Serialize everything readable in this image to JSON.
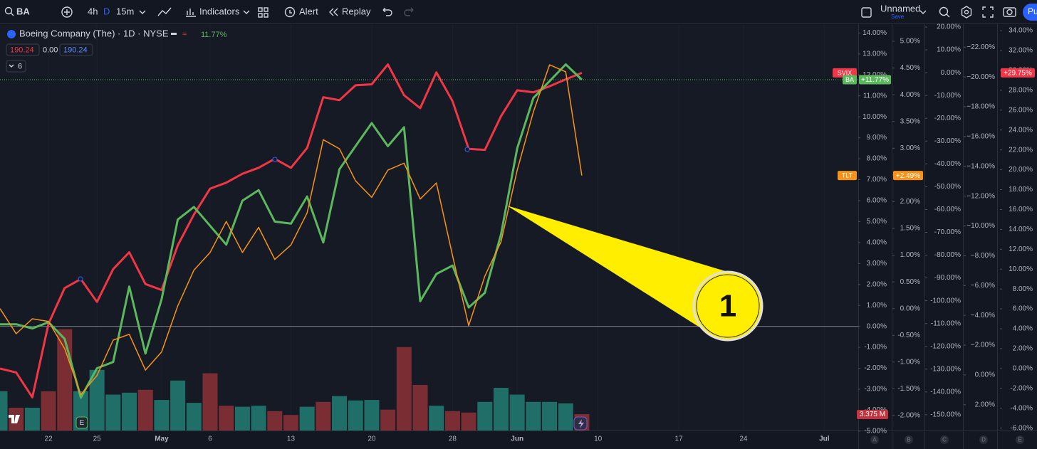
{
  "toolbar": {
    "symbol": "BA",
    "intervals": [
      "4h",
      "D",
      "15m"
    ],
    "indicators": "Indicators",
    "alert": "Alert",
    "replay": "Replay",
    "layout_name": "Unnamed",
    "save": "Save",
    "button": "Pu"
  },
  "legend": {
    "title": "Boeing Company (The) · 1D · NYSE",
    "change": "11.77%",
    "open": "190.24",
    "diff": "0.00",
    "close": "190.24",
    "count": "6"
  },
  "annotation": "1",
  "chart_data": {
    "type": "line",
    "x": [
      0,
      1,
      2,
      3,
      4,
      5,
      6,
      7,
      8,
      9,
      10,
      11,
      12,
      13,
      14,
      15,
      16,
      17,
      18,
      19,
      20,
      21,
      22,
      23,
      24,
      25,
      26,
      27,
      28,
      29,
      30,
      31,
      32,
      33,
      34,
      35,
      36
    ],
    "xlim": [
      0,
      53.1
    ],
    "xticks": [
      {
        "value": 3,
        "label": "22"
      },
      {
        "value": 6,
        "label": "25"
      },
      {
        "value": 10,
        "label": "May"
      },
      {
        "value": 13,
        "label": "6"
      },
      {
        "value": 18,
        "label": "13"
      },
      {
        "value": 23,
        "label": "20"
      },
      {
        "value": 28,
        "label": "28"
      },
      {
        "value": 32,
        "label": "Jun"
      },
      {
        "value": 37,
        "label": "10"
      },
      {
        "value": 42,
        "label": "17"
      },
      {
        "value": 46,
        "label": "24"
      },
      {
        "value": 51,
        "label": "Jul"
      }
    ],
    "axes": [
      {
        "letter": "A",
        "lim": [
          -4.97,
          14.42
        ],
        "inverted": false,
        "ticks": [
          {
            "value": 14,
            "label": "14.00%"
          },
          {
            "value": 13,
            "label": "13.00%"
          },
          {
            "value": 12,
            "label": "12.00%"
          },
          {
            "value": 11,
            "label": "11.00%"
          },
          {
            "value": 10,
            "label": "10.00%"
          },
          {
            "value": 9,
            "label": "9.00%"
          },
          {
            "value": 8,
            "label": "8.00%"
          },
          {
            "value": 7,
            "label": "7.00%"
          },
          {
            "value": 6,
            "label": "6.00%"
          },
          {
            "value": 5,
            "label": "5.00%"
          },
          {
            "value": 4,
            "label": "4.00%"
          },
          {
            "value": 3,
            "label": "3.00%"
          },
          {
            "value": 2,
            "label": "2.00%"
          },
          {
            "value": 1,
            "label": "1.00%"
          },
          {
            "value": 0,
            "label": "0.00%"
          },
          {
            "value": -1,
            "label": "-1.00%"
          },
          {
            "value": -2,
            "label": "-2.00%"
          },
          {
            "value": -3,
            "label": "-3.00%"
          },
          {
            "value": -4,
            "label": "-4.00%"
          },
          {
            "value": -5,
            "label": "-5.00%"
          }
        ]
      },
      {
        "letter": "B",
        "lim": [
          -2.28,
          5.32
        ],
        "inverted": false,
        "ticks": [
          {
            "value": 5,
            "label": "5.00%"
          },
          {
            "value": 4.5,
            "label": "4.50%"
          },
          {
            "value": 4,
            "label": "4.00%"
          },
          {
            "value": 3.5,
            "label": "3.50%"
          },
          {
            "value": 3,
            "label": "3.00%"
          },
          {
            "value": 2.5,
            "label": "2.50%"
          },
          {
            "value": 2,
            "label": "2.00%"
          },
          {
            "value": 1.5,
            "label": "1.50%"
          },
          {
            "value": 1,
            "label": "1.00%"
          },
          {
            "value": 0.5,
            "label": "0.50%"
          },
          {
            "value": 0,
            "label": "0.00%"
          },
          {
            "value": -0.5,
            "label": "-0.50%"
          },
          {
            "value": -1,
            "label": "-1.00%"
          },
          {
            "value": -1.5,
            "label": "-1.50%"
          },
          {
            "value": -2,
            "label": "-2.00%"
          }
        ]
      },
      {
        "letter": "C",
        "lim": [
          -156.9,
          21.25
        ],
        "inverted": false,
        "ticks": [
          {
            "value": 20,
            "label": "20.00%"
          },
          {
            "value": 10,
            "label": "10.00%"
          },
          {
            "value": 0,
            "label": "0.00%"
          },
          {
            "value": -10,
            "label": "-10.00%"
          },
          {
            "value": -20,
            "label": "-20.00%"
          },
          {
            "value": -30,
            "label": "-30.00%"
          },
          {
            "value": -40,
            "label": "-40.00%"
          },
          {
            "value": -50,
            "label": "-50.00%"
          },
          {
            "value": -60,
            "label": "-60.00%"
          },
          {
            "value": -70,
            "label": "-70.00%"
          },
          {
            "value": -80,
            "label": "-80.00%"
          },
          {
            "value": -90,
            "label": "-90.00%"
          },
          {
            "value": -100,
            "label": "-100.00%"
          },
          {
            "value": -110,
            "label": "-110.00%"
          },
          {
            "value": -120,
            "label": "-120.00%"
          },
          {
            "value": -130,
            "label": "-130.00%"
          },
          {
            "value": -140,
            "label": "-140.00%"
          },
          {
            "value": -150,
            "label": "-150.00%"
          }
        ]
      },
      {
        "letter": "D",
        "lim": [
          -23.54,
          3.73
        ],
        "inverted": true,
        "ticks": [
          {
            "value": -22,
            "label": "−22.00%"
          },
          {
            "value": -20,
            "label": "−20.00%"
          },
          {
            "value": -18,
            "label": "−18.00%"
          },
          {
            "value": -16,
            "label": "−16.00%"
          },
          {
            "value": -14,
            "label": "−14.00%"
          },
          {
            "value": -12,
            "label": "−12.00%"
          },
          {
            "value": -10,
            "label": "−10.00%"
          },
          {
            "value": -8,
            "label": "−8.00%"
          },
          {
            "value": -6,
            "label": "−6.00%"
          },
          {
            "value": -4,
            "label": "−4.00%"
          },
          {
            "value": -2,
            "label": "−2.00%"
          },
          {
            "value": 0,
            "label": "0.00%"
          },
          {
            "value": 2,
            "label": "2.00%"
          }
        ]
      },
      {
        "letter": "E",
        "lim": [
          -6.24,
          34.65
        ],
        "inverted": false,
        "ticks": [
          {
            "value": 34,
            "label": "34.00%"
          },
          {
            "value": 32,
            "label": "32.00%"
          },
          {
            "value": 30,
            "label": "30.00%"
          },
          {
            "value": 28,
            "label": "28.00%"
          },
          {
            "value": 26,
            "label": "26.00%"
          },
          {
            "value": 24,
            "label": "24.00%"
          },
          {
            "value": 22,
            "label": "22.00%"
          },
          {
            "value": 20,
            "label": "20.00%"
          },
          {
            "value": 18,
            "label": "18.00%"
          },
          {
            "value": 16,
            "label": "16.00%"
          },
          {
            "value": 14,
            "label": "14.00%"
          },
          {
            "value": 12,
            "label": "12.00%"
          },
          {
            "value": 10,
            "label": "10.00%"
          },
          {
            "value": 8,
            "label": "8.00%"
          },
          {
            "value": 6,
            "label": "6.00%"
          },
          {
            "value": 4,
            "label": "4.00%"
          },
          {
            "value": 2,
            "label": "2.00%"
          },
          {
            "value": 0,
            "label": "0.00%"
          },
          {
            "value": -2,
            "label": "-2.00%"
          },
          {
            "value": -4,
            "label": "-4.00%"
          },
          {
            "value": -6,
            "label": "-6.00%"
          }
        ]
      }
    ],
    "series": [
      {
        "name": "SVIX",
        "color": "#f23645",
        "axis": "E",
        "last_label": "+29.75%",
        "values": [
          0,
          -0.4,
          -2.9,
          4.5,
          8.1,
          9.0,
          6.7,
          10.0,
          11.7,
          8.5,
          7.9,
          12.4,
          15.5,
          18.1,
          18.7,
          19.6,
          20.2,
          21.1,
          20.2,
          22.2,
          27.3,
          27.0,
          28.5,
          28.6,
          30.6,
          27.5,
          26.2,
          29.8,
          26.9,
          22.1,
          22.0,
          25.4,
          28.0,
          27.8,
          28.4,
          29.1,
          29.75
        ]
      },
      {
        "name": "BA",
        "color": "#5cb85c",
        "axis": "A",
        "last_label": "+11.77%",
        "values": [
          0.1,
          0.1,
          -0.1,
          0.2,
          -0.6,
          -3.4,
          -2.0,
          -1.7,
          1.9,
          -1.3,
          1.3,
          5.1,
          5.7,
          4.8,
          3.9,
          6.0,
          6.5,
          5.0,
          4.9,
          6.2,
          4.0,
          7.5,
          8.6,
          9.7,
          8.6,
          9.5,
          1.2,
          2.5,
          2.9,
          0.9,
          1.6,
          4.4,
          8.5,
          10.9,
          11.7,
          12.5,
          11.77
        ]
      },
      {
        "name": "TLT",
        "color": "#f7931a",
        "axis": "B",
        "last_label": "+2.49%",
        "values": [
          0.0,
          -0.47,
          -0.19,
          -0.24,
          -0.75,
          -1.61,
          -1.25,
          -0.59,
          -0.48,
          -1.15,
          -0.81,
          0.05,
          0.72,
          1.05,
          1.63,
          1.05,
          1.52,
          0.92,
          1.19,
          1.79,
          3.16,
          2.99,
          2.39,
          2.08,
          2.59,
          2.72,
          2.05,
          2.35,
          0.99,
          -0.32,
          0.61,
          1.25,
          2.59,
          3.68,
          4.56,
          4.43,
          2.49
        ]
      }
    ],
    "volume": {
      "ylim": [
        0,
        83.8
      ],
      "last_label": "3.375 M",
      "values": [
        8.1,
        4.7,
        4.7,
        8.1,
        20.9,
        8.1,
        12.5,
        7.4,
        7.8,
        8.4,
        6.3,
        10.3,
        5.7,
        11.8,
        5.1,
        4.9,
        5.1,
        4.0,
        3.2,
        4.9,
        5.9,
        7.1,
        6.2,
        6.3,
        4.3,
        17.2,
        9.4,
        5.1,
        4.0,
        3.7,
        5.9,
        8.8,
        7.4,
        5.9,
        5.9,
        5.6,
        3.375
      ],
      "colors": [
        "#1f6f68",
        "#7a2d33",
        "#1f6f68",
        "#7a2d33",
        "#7a2d33",
        "#1f6f68",
        "#1f6f68",
        "#1f6f68",
        "#1f6f68",
        "#7a2d33",
        "#1f6f68",
        "#1f6f68",
        "#1f6f68",
        "#7a2d33",
        "#7a2d33",
        "#1f6f68",
        "#1f6f68",
        "#7a2d33",
        "#7a2d33",
        "#1f6f68",
        "#7a2d33",
        "#1f6f68",
        "#1f6f68",
        "#1f6f68",
        "#7a2d33",
        "#7a2d33",
        "#7a2d33",
        "#1f6f68",
        "#7a2d33",
        "#7a2d33",
        "#1f6f68",
        "#1f6f68",
        "#1f6f68",
        "#1f6f68",
        "#1f6f68",
        "#1f6f68",
        "#7a2d33"
      ]
    }
  }
}
